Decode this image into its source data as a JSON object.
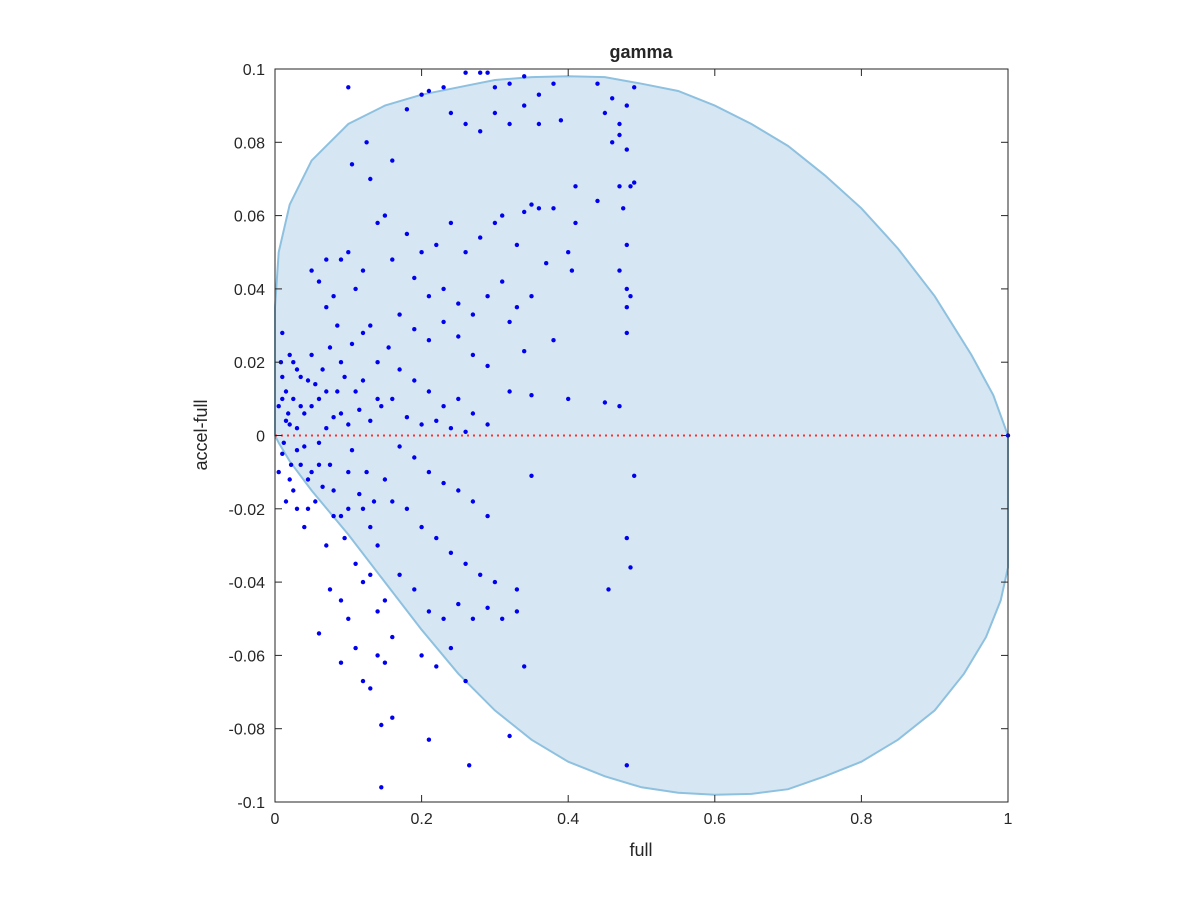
{
  "chart_data": {
    "type": "scatter",
    "title": "gamma",
    "xlabel": "full",
    "ylabel": "accel-full",
    "xlim": [
      0,
      1
    ],
    "ylim": [
      -0.1,
      0.1
    ],
    "xticks": [
      0,
      0.2,
      0.4,
      0.6,
      0.8,
      1
    ],
    "xtick_labels": [
      "0",
      "0.2",
      "0.4",
      "0.6",
      "0.8",
      "1"
    ],
    "yticks": [
      -0.1,
      -0.08,
      -0.06,
      -0.04,
      -0.02,
      0,
      0.02,
      0.04,
      0.06,
      0.08,
      0.1
    ],
    "ytick_labels": [
      "-0.1",
      "-0.08",
      "-0.06",
      "-0.04",
      "-0.02",
      "0",
      "0.02",
      "0.04",
      "0.06",
      "0.08",
      "0.1"
    ],
    "grid": false,
    "colors": {
      "points": "#0000ee",
      "region_fill": "#d6e7f3",
      "region_edge": "#8ec1e0",
      "reference_line": "#ff3030",
      "axis": "#262626"
    },
    "reference_line": {
      "y": 0,
      "style": "dotted",
      "x_range": [
        0,
        1
      ]
    },
    "region_outline": {
      "shape": "filled_region",
      "points": [
        [
          0,
          0.035
        ],
        [
          0.005,
          0.05
        ],
        [
          0.02,
          0.063
        ],
        [
          0.05,
          0.075
        ],
        [
          0.1,
          0.085
        ],
        [
          0.15,
          0.09
        ],
        [
          0.2,
          0.093
        ],
        [
          0.25,
          0.095
        ],
        [
          0.3,
          0.097
        ],
        [
          0.35,
          0.0978
        ],
        [
          0.4,
          0.098
        ],
        [
          0.45,
          0.0978
        ],
        [
          0.5,
          0.096
        ],
        [
          0.55,
          0.094
        ],
        [
          0.6,
          0.09
        ],
        [
          0.65,
          0.085
        ],
        [
          0.7,
          0.079
        ],
        [
          0.75,
          0.071
        ],
        [
          0.8,
          0.062
        ],
        [
          0.85,
          0.051
        ],
        [
          0.9,
          0.038
        ],
        [
          0.95,
          0.022
        ],
        [
          0.98,
          0.011
        ],
        [
          1.0,
          0
        ],
        [
          1.0,
          -0.036
        ],
        [
          0.99,
          -0.045
        ],
        [
          0.97,
          -0.055
        ],
        [
          0.94,
          -0.065
        ],
        [
          0.9,
          -0.075
        ],
        [
          0.85,
          -0.083
        ],
        [
          0.8,
          -0.089
        ],
        [
          0.75,
          -0.093
        ],
        [
          0.7,
          -0.0965
        ],
        [
          0.65,
          -0.0978
        ],
        [
          0.6,
          -0.098
        ],
        [
          0.55,
          -0.0975
        ],
        [
          0.5,
          -0.096
        ],
        [
          0.45,
          -0.093
        ],
        [
          0.4,
          -0.089
        ],
        [
          0.35,
          -0.083
        ],
        [
          0.3,
          -0.075
        ],
        [
          0.25,
          -0.065
        ],
        [
          0.2,
          -0.053
        ],
        [
          0.15,
          -0.04
        ],
        [
          0.1,
          -0.027
        ],
        [
          0.05,
          -0.015
        ],
        [
          0.02,
          -0.007
        ],
        [
          0.005,
          -0.002
        ],
        [
          0,
          0
        ]
      ]
    },
    "points": [
      [
        0.01,
        0.01
      ],
      [
        0.01,
        -0.005
      ],
      [
        0.02,
        0.003
      ],
      [
        0.005,
        0.008
      ],
      [
        0.012,
        -0.002
      ],
      [
        0.015,
        0.012
      ],
      [
        0.008,
        0.02
      ],
      [
        0.022,
        -0.008
      ],
      [
        0.018,
        0.006
      ],
      [
        0.03,
        0.002
      ],
      [
        0.025,
        -0.015
      ],
      [
        0.035,
        0.008
      ],
      [
        0.04,
        -0.003
      ],
      [
        0.045,
        0.015
      ],
      [
        0.05,
        -0.01
      ],
      [
        0.01,
        0.028
      ],
      [
        0.02,
        0.022
      ],
      [
        0.03,
        0.018
      ],
      [
        0.03,
        -0.02
      ],
      [
        0.04,
        -0.025
      ],
      [
        0.05,
        0.022
      ],
      [
        0.06,
        -0.002
      ],
      [
        0.06,
        0.01
      ],
      [
        0.055,
        -0.018
      ],
      [
        0.07,
        0.012
      ],
      [
        0.07,
        -0.03
      ],
      [
        0.08,
        0.005
      ],
      [
        0.08,
        -0.015
      ],
      [
        0.09,
        0.02
      ],
      [
        0.09,
        -0.022
      ],
      [
        0.1,
        0.003
      ],
      [
        0.1,
        -0.01
      ],
      [
        0.105,
        0.025
      ],
      [
        0.11,
        -0.035
      ],
      [
        0.12,
        0.015
      ],
      [
        0.12,
        -0.02
      ],
      [
        0.13,
        0.03
      ],
      [
        0.13,
        -0.025
      ],
      [
        0.14,
        0.01
      ],
      [
        0.14,
        -0.03
      ],
      [
        0.005,
        -0.01
      ],
      [
        0.015,
        -0.018
      ],
      [
        0.025,
        0.01
      ],
      [
        0.035,
        -0.008
      ],
      [
        0.045,
        -0.012
      ],
      [
        0.065,
        0.018
      ],
      [
        0.075,
        -0.008
      ],
      [
        0.085,
        0.03
      ],
      [
        0.095,
        -0.028
      ],
      [
        0.115,
        0.007
      ],
      [
        0.06,
        0.042
      ],
      [
        0.07,
        0.035
      ],
      [
        0.08,
        0.038
      ],
      [
        0.09,
        0.048
      ],
      [
        0.1,
        0.05
      ],
      [
        0.11,
        0.04
      ],
      [
        0.12,
        0.045
      ],
      [
        0.13,
        0.07
      ],
      [
        0.14,
        0.058
      ],
      [
        0.15,
        0.06
      ],
      [
        0.05,
        0.045
      ],
      [
        0.07,
        0.048
      ],
      [
        0.09,
        -0.045
      ],
      [
        0.1,
        -0.05
      ],
      [
        0.11,
        -0.058
      ],
      [
        0.12,
        -0.067
      ],
      [
        0.13,
        -0.069
      ],
      [
        0.14,
        -0.06
      ],
      [
        0.15,
        -0.062
      ],
      [
        0.16,
        -0.077
      ],
      [
        0.145,
        -0.079
      ],
      [
        0.145,
        -0.096
      ],
      [
        0.21,
        -0.083
      ],
      [
        0.265,
        -0.09
      ],
      [
        0.32,
        -0.082
      ],
      [
        0.06,
        -0.054
      ],
      [
        0.09,
        -0.062
      ],
      [
        0.075,
        -0.042
      ],
      [
        0.1,
        0.095
      ],
      [
        0.105,
        0.074
      ],
      [
        0.125,
        0.08
      ],
      [
        0.16,
        0.075
      ],
      [
        0.18,
        0.089
      ],
      [
        0.2,
        0.093
      ],
      [
        0.21,
        0.094
      ],
      [
        0.23,
        0.095
      ],
      [
        0.26,
        0.099
      ],
      [
        0.28,
        0.099
      ],
      [
        0.29,
        0.099
      ],
      [
        0.3,
        0.095
      ],
      [
        0.32,
        0.096
      ],
      [
        0.34,
        0.098
      ],
      [
        0.36,
        0.093
      ],
      [
        0.38,
        0.096
      ],
      [
        0.24,
        0.088
      ],
      [
        0.26,
        0.085
      ],
      [
        0.28,
        0.083
      ],
      [
        0.3,
        0.088
      ],
      [
        0.32,
        0.085
      ],
      [
        0.34,
        0.09
      ],
      [
        0.36,
        0.085
      ],
      [
        0.39,
        0.086
      ],
      [
        0.44,
        0.096
      ],
      [
        0.45,
        0.088
      ],
      [
        0.46,
        0.092
      ],
      [
        0.47,
        0.085
      ],
      [
        0.48,
        0.09
      ],
      [
        0.49,
        0.095
      ],
      [
        0.46,
        0.08
      ],
      [
        0.47,
        0.082
      ],
      [
        0.48,
        0.078
      ],
      [
        0.49,
        0.069
      ],
      [
        0.485,
        0.068
      ],
      [
        0.47,
        0.068
      ],
      [
        0.44,
        0.064
      ],
      [
        0.41,
        0.068
      ],
      [
        0.38,
        0.062
      ],
      [
        0.36,
        0.062
      ],
      [
        0.35,
        0.063
      ],
      [
        0.34,
        0.061
      ],
      [
        0.33,
        0.052
      ],
      [
        0.31,
        0.06
      ],
      [
        0.3,
        0.058
      ],
      [
        0.28,
        0.054
      ],
      [
        0.26,
        0.05
      ],
      [
        0.24,
        0.058
      ],
      [
        0.22,
        0.052
      ],
      [
        0.2,
        0.05
      ],
      [
        0.18,
        0.055
      ],
      [
        0.16,
        0.048
      ],
      [
        0.19,
        0.043
      ],
      [
        0.21,
        0.038
      ],
      [
        0.23,
        0.04
      ],
      [
        0.25,
        0.036
      ],
      [
        0.27,
        0.033
      ],
      [
        0.29,
        0.038
      ],
      [
        0.31,
        0.042
      ],
      [
        0.33,
        0.035
      ],
      [
        0.35,
        0.038
      ],
      [
        0.37,
        0.047
      ],
      [
        0.17,
        0.033
      ],
      [
        0.19,
        0.029
      ],
      [
        0.21,
        0.026
      ],
      [
        0.23,
        0.031
      ],
      [
        0.25,
        0.027
      ],
      [
        0.27,
        0.022
      ],
      [
        0.29,
        0.019
      ],
      [
        0.32,
        0.031
      ],
      [
        0.34,
        0.023
      ],
      [
        0.38,
        0.026
      ],
      [
        0.17,
        0.018
      ],
      [
        0.19,
        0.015
      ],
      [
        0.21,
        0.012
      ],
      [
        0.23,
        0.008
      ],
      [
        0.25,
        0.01
      ],
      [
        0.27,
        0.006
      ],
      [
        0.29,
        0.003
      ],
      [
        0.16,
        0.01
      ],
      [
        0.18,
        0.005
      ],
      [
        0.2,
        0.003
      ],
      [
        0.22,
        0.004
      ],
      [
        0.24,
        0.002
      ],
      [
        0.26,
        0.001
      ],
      [
        0.32,
        0.012
      ],
      [
        0.35,
        0.011
      ],
      [
        0.4,
        0.01
      ],
      [
        0.45,
        0.009
      ],
      [
        0.47,
        0.008
      ],
      [
        0.48,
        0.035
      ],
      [
        0.48,
        0.028
      ],
      [
        0.47,
        0.045
      ],
      [
        0.48,
        0.04
      ],
      [
        0.48,
        0.052
      ],
      [
        0.475,
        0.062
      ],
      [
        0.485,
        0.038
      ],
      [
        0.405,
        0.045
      ],
      [
        0.41,
        0.058
      ],
      [
        0.4,
        0.05
      ],
      [
        0.17,
        -0.003
      ],
      [
        0.19,
        -0.006
      ],
      [
        0.21,
        -0.01
      ],
      [
        0.23,
        -0.013
      ],
      [
        0.25,
        -0.015
      ],
      [
        0.27,
        -0.018
      ],
      [
        0.29,
        -0.022
      ],
      [
        0.16,
        -0.018
      ],
      [
        0.18,
        -0.02
      ],
      [
        0.2,
        -0.025
      ],
      [
        0.22,
        -0.028
      ],
      [
        0.24,
        -0.032
      ],
      [
        0.26,
        -0.035
      ],
      [
        0.28,
        -0.038
      ],
      [
        0.3,
        -0.04
      ],
      [
        0.33,
        -0.042
      ],
      [
        0.17,
        -0.038
      ],
      [
        0.19,
        -0.042
      ],
      [
        0.21,
        -0.048
      ],
      [
        0.23,
        -0.05
      ],
      [
        0.25,
        -0.046
      ],
      [
        0.27,
        -0.05
      ],
      [
        0.29,
        -0.047
      ],
      [
        0.31,
        -0.05
      ],
      [
        0.33,
        -0.048
      ],
      [
        0.35,
        -0.011
      ],
      [
        0.2,
        -0.06
      ],
      [
        0.22,
        -0.063
      ],
      [
        0.24,
        -0.058
      ],
      [
        0.26,
        -0.067
      ],
      [
        0.34,
        -0.063
      ],
      [
        0.15,
        -0.045
      ],
      [
        0.16,
        -0.055
      ],
      [
        0.14,
        -0.048
      ],
      [
        0.12,
        -0.04
      ],
      [
        0.13,
        -0.038
      ],
      [
        0.455,
        -0.042
      ],
      [
        0.48,
        -0.028
      ],
      [
        0.485,
        -0.036
      ],
      [
        0.49,
        -0.011
      ],
      [
        0.48,
        -0.09
      ],
      [
        1.0,
        0
      ],
      [
        0.01,
        0.016
      ],
      [
        0.015,
        0.004
      ],
      [
        0.02,
        -0.012
      ],
      [
        0.025,
        0.02
      ],
      [
        0.03,
        -0.004
      ],
      [
        0.035,
        0.016
      ],
      [
        0.04,
        0.006
      ],
      [
        0.045,
        -0.02
      ],
      [
        0.05,
        0.008
      ],
      [
        0.055,
        0.014
      ],
      [
        0.06,
        -0.008
      ],
      [
        0.065,
        -0.014
      ],
      [
        0.07,
        0.002
      ],
      [
        0.075,
        0.024
      ],
      [
        0.08,
        -0.022
      ],
      [
        0.085,
        0.012
      ],
      [
        0.09,
        0.006
      ],
      [
        0.095,
        0.016
      ],
      [
        0.1,
        -0.02
      ],
      [
        0.105,
        -0.004
      ],
      [
        0.11,
        0.012
      ],
      [
        0.115,
        -0.016
      ],
      [
        0.12,
        0.028
      ],
      [
        0.125,
        -0.01
      ],
      [
        0.13,
        0.004
      ],
      [
        0.135,
        -0.018
      ],
      [
        0.14,
        0.02
      ],
      [
        0.145,
        0.008
      ],
      [
        0.15,
        -0.012
      ],
      [
        0.155,
        0.024
      ]
    ]
  }
}
